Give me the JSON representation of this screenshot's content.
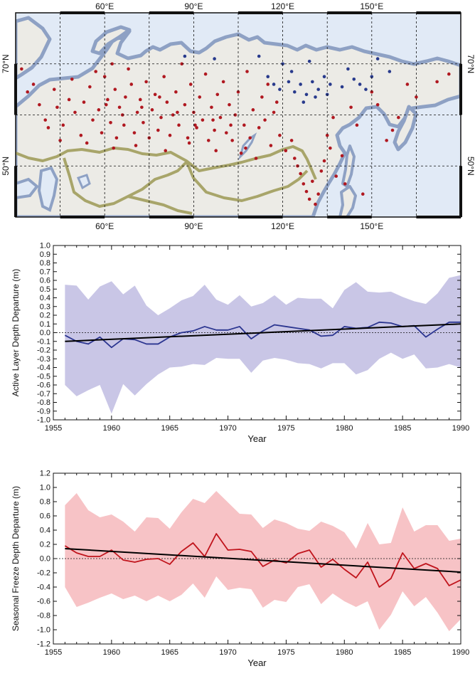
{
  "chart_data": [
    {
      "type": "map",
      "lon_ticks_top": [
        "60°E",
        "90°E",
        "120°E",
        "150°E"
      ],
      "lon_ticks_bottom": [
        "60°E",
        "90°E",
        "120°E",
        "150°E"
      ],
      "lat_ticks_left": [
        "70°N",
        "50°N"
      ],
      "lat_ticks_right": [
        "70°N",
        "50°N"
      ],
      "lon_range": [
        30,
        180
      ],
      "lat_range": [
        40,
        80
      ],
      "colors": {
        "ocean": "#e1eaf6",
        "land": "#ecebe6",
        "coast": "#8ea1c4",
        "border": "#a8a56a",
        "red_station": "#b01820",
        "blue_station": "#283a8c"
      },
      "stations_red": [
        [
          32.0,
          69.0
        ],
        [
          34.0,
          64.5
        ],
        [
          36.0,
          66.0
        ],
        [
          38.0,
          62.0
        ],
        [
          40.0,
          59.0
        ],
        [
          41.0,
          57.5
        ],
        [
          43.0,
          65.0
        ],
        [
          44.0,
          61.5
        ],
        [
          46.0,
          58.0
        ],
        [
          48.0,
          63.0
        ],
        [
          49.0,
          67.0
        ],
        [
          50.0,
          60.5
        ],
        [
          52.0,
          56.0
        ],
        [
          53.0,
          62.5
        ],
        [
          55.0,
          65.5
        ],
        [
          56.0,
          59.0
        ],
        [
          58.0,
          61.0
        ],
        [
          59.0,
          56.5
        ],
        [
          60.0,
          67.5
        ],
        [
          61.0,
          63.0
        ],
        [
          62.0,
          58.5
        ],
        [
          63.5,
          65.0
        ],
        [
          64.0,
          55.5
        ],
        [
          65.0,
          61.5
        ],
        [
          66.5,
          58.0
        ],
        [
          67.0,
          63.5
        ],
        [
          68.0,
          69.0
        ],
        [
          69.0,
          66.0
        ],
        [
          70.0,
          56.5
        ],
        [
          71.0,
          60.5
        ],
        [
          72.0,
          63.0
        ],
        [
          73.0,
          58.5
        ],
        [
          74.0,
          66.5
        ],
        [
          75.0,
          55.5
        ],
        [
          76.0,
          61.0
        ],
        [
          77.0,
          64.0
        ],
        [
          78.0,
          57.0
        ],
        [
          79.0,
          59.5
        ],
        [
          80.0,
          67.5
        ],
        [
          81.0,
          62.5
        ],
        [
          82.0,
          56.0
        ],
        [
          83.0,
          60.0
        ],
        [
          84.0,
          64.5
        ],
        [
          85.0,
          58.0
        ],
        [
          86.0,
          70.0
        ],
        [
          87.0,
          62.0
        ],
        [
          88.0,
          55.5
        ],
        [
          89.0,
          66.0
        ],
        [
          90.0,
          60.5
        ],
        [
          91.0,
          57.5
        ],
        [
          92.0,
          63.5
        ],
        [
          93.0,
          59.0
        ],
        [
          94.0,
          68.0
        ],
        [
          95.0,
          55.0
        ],
        [
          96.0,
          61.5
        ],
        [
          97.0,
          57.0
        ],
        [
          98.0,
          64.0
        ],
        [
          99.0,
          59.5
        ],
        [
          100.0,
          66.5
        ],
        [
          101.0,
          56.5
        ],
        [
          102.0,
          62.0
        ],
        [
          103.0,
          55.0
        ],
        [
          104.0,
          60.0
        ],
        [
          105.0,
          64.5
        ],
        [
          106.0,
          52.5
        ],
        [
          107.0,
          58.0
        ],
        [
          108.0,
          68.5
        ],
        [
          109.0,
          55.5
        ],
        [
          110.0,
          61.0
        ],
        [
          111.0,
          51.5
        ],
        [
          112.0,
          57.5
        ],
        [
          113.0,
          63.5
        ],
        [
          114.0,
          59.0
        ],
        [
          115.0,
          66.0
        ],
        [
          116.0,
          54.0
        ],
        [
          117.0,
          60.5
        ],
        [
          118.0,
          62.5
        ],
        [
          119.0,
          56.0
        ],
        [
          121.0,
          53.0
        ],
        [
          123.0,
          55.0
        ],
        [
          124.0,
          51.5
        ],
        [
          125.0,
          50.0
        ],
        [
          126.0,
          48.5
        ],
        [
          127.0,
          46.5
        ],
        [
          128.0,
          45.0
        ],
        [
          129.0,
          43.5
        ],
        [
          130.0,
          47.0
        ],
        [
          131.0,
          42.5
        ],
        [
          132.0,
          44.5
        ],
        [
          133.0,
          49.0
        ],
        [
          134.0,
          51.0
        ],
        [
          135.0,
          56.0
        ],
        [
          136.0,
          53.5
        ],
        [
          137.0,
          59.5
        ],
        [
          138.0,
          48.0
        ],
        [
          140.0,
          52.0
        ],
        [
          141.0,
          46.5
        ],
        [
          143.0,
          61.5
        ],
        [
          145.0,
          58.0
        ],
        [
          147.0,
          44.5
        ],
        [
          150.0,
          64.5
        ],
        [
          152.0,
          62.0
        ],
        [
          155.0,
          55.0
        ],
        [
          157.0,
          57.0
        ],
        [
          159.0,
          59.5
        ],
        [
          162.0,
          66.0
        ],
        [
          165.0,
          63.5
        ],
        [
          172.0,
          66.5
        ],
        [
          176.0,
          68.0
        ],
        [
          60.5,
          62.0
        ],
        [
          66.0,
          60.0
        ],
        [
          72.5,
          61.5
        ],
        [
          78.5,
          63.5
        ],
        [
          84.5,
          60.5
        ],
        [
          90.5,
          58.0
        ],
        [
          96.5,
          59.0
        ],
        [
          102.5,
          58.0
        ],
        [
          45.0,
          55.0
        ],
        [
          54.0,
          54.5
        ],
        [
          63.0,
          53.5
        ],
        [
          70.5,
          54.0
        ],
        [
          80.5,
          53.0
        ],
        [
          88.5,
          54.5
        ],
        [
          97.5,
          53.0
        ],
        [
          107.5,
          53.5
        ],
        [
          57.0,
          68.5
        ],
        [
          62.5,
          70.0
        ]
      ],
      "stations_blue": [
        [
          87.0,
          71.5
        ],
        [
          97.0,
          71.0
        ],
        [
          112.0,
          71.5
        ],
        [
          115.0,
          67.5
        ],
        [
          117.0,
          66.0
        ],
        [
          119.0,
          65.0
        ],
        [
          120.0,
          70.0
        ],
        [
          122.0,
          66.5
        ],
        [
          123.0,
          68.5
        ],
        [
          124.0,
          64.5
        ],
        [
          126.0,
          66.0
        ],
        [
          127.0,
          62.5
        ],
        [
          128.0,
          64.0
        ],
        [
          129.0,
          70.5
        ],
        [
          130.0,
          66.5
        ],
        [
          131.0,
          63.5
        ],
        [
          132.0,
          65.0
        ],
        [
          134.0,
          67.5
        ],
        [
          135.0,
          64.0
        ],
        [
          136.0,
          66.0
        ],
        [
          140.0,
          65.5
        ],
        [
          142.0,
          69.0
        ],
        [
          144.0,
          67.0
        ],
        [
          146.0,
          66.0
        ],
        [
          148.0,
          65.0
        ],
        [
          150.0,
          67.5
        ],
        [
          152.0,
          71.0
        ],
        [
          156.0,
          68.5
        ]
      ]
    },
    {
      "type": "line",
      "xlabel": "Year",
      "ylabel": "Active Layer Depth Departure (m)",
      "xlim": [
        1955,
        1990
      ],
      "ylim": [
        -1.0,
        1.0
      ],
      "xticks": [
        1955,
        1960,
        1965,
        1970,
        1975,
        1980,
        1985,
        1990
      ],
      "yticks": [
        -1.0,
        -0.9,
        -0.8,
        -0.7,
        -0.6,
        -0.5,
        -0.4,
        -0.3,
        -0.2,
        -0.1,
        0.0,
        0.1,
        0.2,
        0.3,
        0.4,
        0.5,
        0.6,
        0.7,
        0.8,
        0.9,
        1.0
      ],
      "line_color": "#2b3590",
      "band_color": "#c9c6e6",
      "x": [
        1956,
        1957,
        1958,
        1959,
        1960,
        1961,
        1962,
        1963,
        1964,
        1965,
        1966,
        1967,
        1968,
        1969,
        1970,
        1971,
        1972,
        1973,
        1974,
        1975,
        1976,
        1977,
        1978,
        1979,
        1980,
        1981,
        1982,
        1983,
        1984,
        1985,
        1986,
        1987,
        1988,
        1989,
        1990
      ],
      "mean": [
        -0.03,
        -0.1,
        -0.13,
        -0.05,
        -0.17,
        -0.07,
        -0.08,
        -0.13,
        -0.13,
        -0.05,
        0.0,
        0.02,
        0.07,
        0.03,
        0.03,
        0.07,
        -0.07,
        0.02,
        0.09,
        0.07,
        0.05,
        0.03,
        -0.04,
        -0.03,
        0.07,
        0.05,
        0.06,
        0.12,
        0.11,
        0.07,
        0.08,
        -0.05,
        0.04,
        0.12,
        0.12
      ],
      "upper": [
        0.55,
        0.54,
        0.38,
        0.53,
        0.59,
        0.44,
        0.54,
        0.31,
        0.2,
        0.28,
        0.37,
        0.42,
        0.55,
        0.38,
        0.32,
        0.43,
        0.3,
        0.34,
        0.43,
        0.32,
        0.4,
        0.39,
        0.39,
        0.28,
        0.49,
        0.58,
        0.47,
        0.46,
        0.47,
        0.41,
        0.36,
        0.33,
        0.45,
        0.63,
        0.66
      ],
      "lower": [
        -0.6,
        -0.73,
        -0.66,
        -0.6,
        -0.93,
        -0.59,
        -0.72,
        -0.59,
        -0.48,
        -0.4,
        -0.39,
        -0.36,
        -0.37,
        -0.29,
        -0.3,
        -0.3,
        -0.46,
        -0.32,
        -0.29,
        -0.31,
        -0.35,
        -0.36,
        -0.41,
        -0.35,
        -0.35,
        -0.48,
        -0.43,
        -0.3,
        -0.23,
        -0.3,
        -0.25,
        -0.41,
        -0.4,
        -0.36,
        -0.4
      ],
      "trend": [
        -0.1,
        0.1
      ]
    },
    {
      "type": "line",
      "xlabel": "Year",
      "ylabel": "Seasonal Freeze Depth Departure (m)",
      "xlim": [
        1955,
        1990
      ],
      "ylim": [
        -1.2,
        1.2
      ],
      "xticks": [
        1955,
        1960,
        1965,
        1970,
        1975,
        1980,
        1985,
        1990
      ],
      "yticks": [
        -1.2,
        -1.0,
        -0.8,
        -0.6,
        -0.4,
        -0.2,
        0.0,
        0.2,
        0.4,
        0.6,
        0.8,
        1.0,
        1.2
      ],
      "line_color": "#c0141c",
      "band_color": "#f7c3c6",
      "x": [
        1956,
        1957,
        1958,
        1959,
        1960,
        1961,
        1962,
        1963,
        1964,
        1965,
        1966,
        1967,
        1968,
        1969,
        1970,
        1971,
        1972,
        1973,
        1974,
        1975,
        1976,
        1977,
        1978,
        1979,
        1980,
        1981,
        1982,
        1983,
        1984,
        1985,
        1986,
        1987,
        1988,
        1989,
        1990
      ],
      "mean": [
        0.18,
        0.08,
        0.03,
        0.03,
        0.12,
        -0.02,
        -0.05,
        -0.01,
        0.0,
        -0.08,
        0.1,
        0.22,
        0.03,
        0.35,
        0.12,
        0.13,
        0.1,
        -0.11,
        -0.02,
        -0.06,
        0.07,
        0.12,
        -0.12,
        -0.01,
        -0.15,
        -0.27,
        -0.05,
        -0.4,
        -0.28,
        0.08,
        -0.14,
        -0.07,
        -0.14,
        -0.38,
        -0.3
      ],
      "upper": [
        0.75,
        0.92,
        0.68,
        0.58,
        0.62,
        0.52,
        0.38,
        0.58,
        0.57,
        0.42,
        0.65,
        0.84,
        0.78,
        0.95,
        0.79,
        0.63,
        0.62,
        0.43,
        0.55,
        0.5,
        0.42,
        0.39,
        0.52,
        0.46,
        0.37,
        0.14,
        0.5,
        0.2,
        0.22,
        0.72,
        0.38,
        0.47,
        0.47,
        0.25,
        0.28
      ],
      "lower": [
        -0.4,
        -0.68,
        -0.62,
        -0.55,
        -0.49,
        -0.57,
        -0.52,
        -0.6,
        -0.52,
        -0.6,
        -0.51,
        -0.35,
        -0.55,
        -0.25,
        -0.44,
        -0.41,
        -0.43,
        -0.69,
        -0.58,
        -0.61,
        -0.4,
        -0.36,
        -0.64,
        -0.49,
        -0.6,
        -0.68,
        -0.6,
        -1.0,
        -0.79,
        -0.46,
        -0.67,
        -0.54,
        -0.76,
        -1.02,
        -0.85
      ],
      "trend": [
        0.14,
        -0.19
      ]
    }
  ]
}
